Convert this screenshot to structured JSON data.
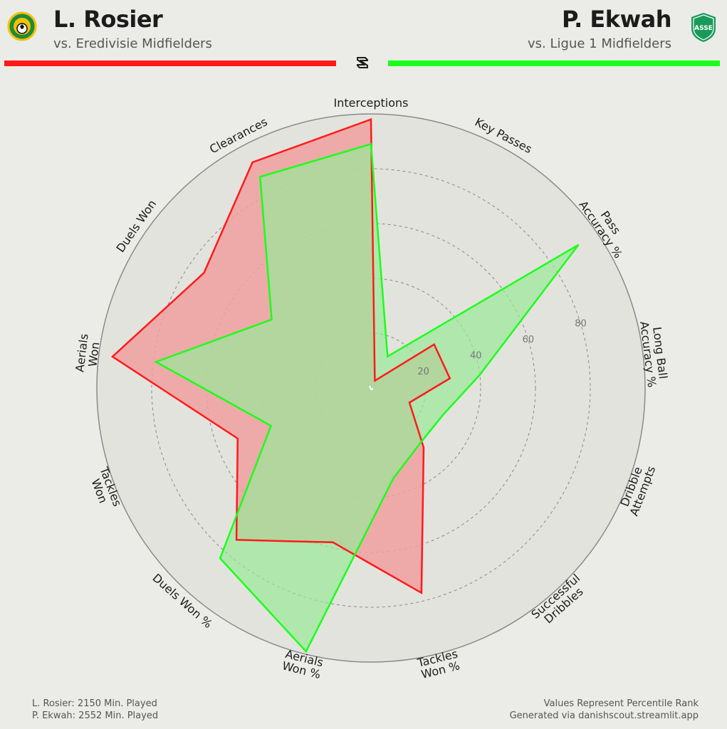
{
  "header": {
    "left_name": "L. Rosier",
    "left_sub": "vs. Eredivisie Midfielders",
    "right_name": "P. Ekwah",
    "right_sub": "vs. Ligue 1 Midfielders",
    "right_badge_text": "ASSE",
    "left_color": "#ff1a1a",
    "right_color": "#1aff1a"
  },
  "footer": {
    "left_line1": "L. Rosier: 2150 Min. Played",
    "left_line2": "P. Ekwah: 2552 Min. Played",
    "right_line1": "Values Represent Percentile Rank",
    "right_line2": "Generated via danishscout.streamlit.app"
  },
  "chart_data": {
    "type": "radar",
    "categories": [
      "Interceptions",
      "Key Passes",
      "Pass Accuracy %",
      "Long Ball Accuracy %",
      "Dribble Attempts",
      "Successful Dribbles",
      "Tackles Won %",
      "Aerials Won %",
      "Duels Won %",
      "Tackles Won",
      "Aerials Won",
      "Duels Won",
      "Clearances"
    ],
    "category_lines": [
      [
        "Interceptions"
      ],
      [
        "Key Passes"
      ],
      [
        "Pass",
        "Accuracy %"
      ],
      [
        "Long Ball",
        "Accuracy %"
      ],
      [
        "Dribble",
        "Attempts"
      ],
      [
        "Successful",
        "Dribbles"
      ],
      [
        "Tackles",
        "Won %"
      ],
      [
        "Aerials",
        "Won %"
      ],
      [
        "Duels Won %"
      ],
      [
        "Tackles",
        "Won"
      ],
      [
        "Aerials",
        "Won"
      ],
      [
        "Duels Won"
      ],
      [
        "Clearances"
      ]
    ],
    "rlim": [
      0,
      100
    ],
    "ticks": [
      20,
      40,
      60,
      80
    ],
    "series": [
      {
        "name": "L. Rosier",
        "color": "#ff1a1a",
        "fill": "#f0a0a0",
        "values": [
          98,
          3,
          28,
          29,
          15,
          29,
          77,
          58,
          74,
          52,
          95,
          74,
          93
        ]
      },
      {
        "name": "P. Ekwah",
        "color": "#1aff1a",
        "fill": "#98e898",
        "values": [
          89,
          13,
          92,
          40,
          28,
          27,
          34,
          99,
          83,
          39,
          79,
          44,
          87
        ]
      }
    ]
  }
}
